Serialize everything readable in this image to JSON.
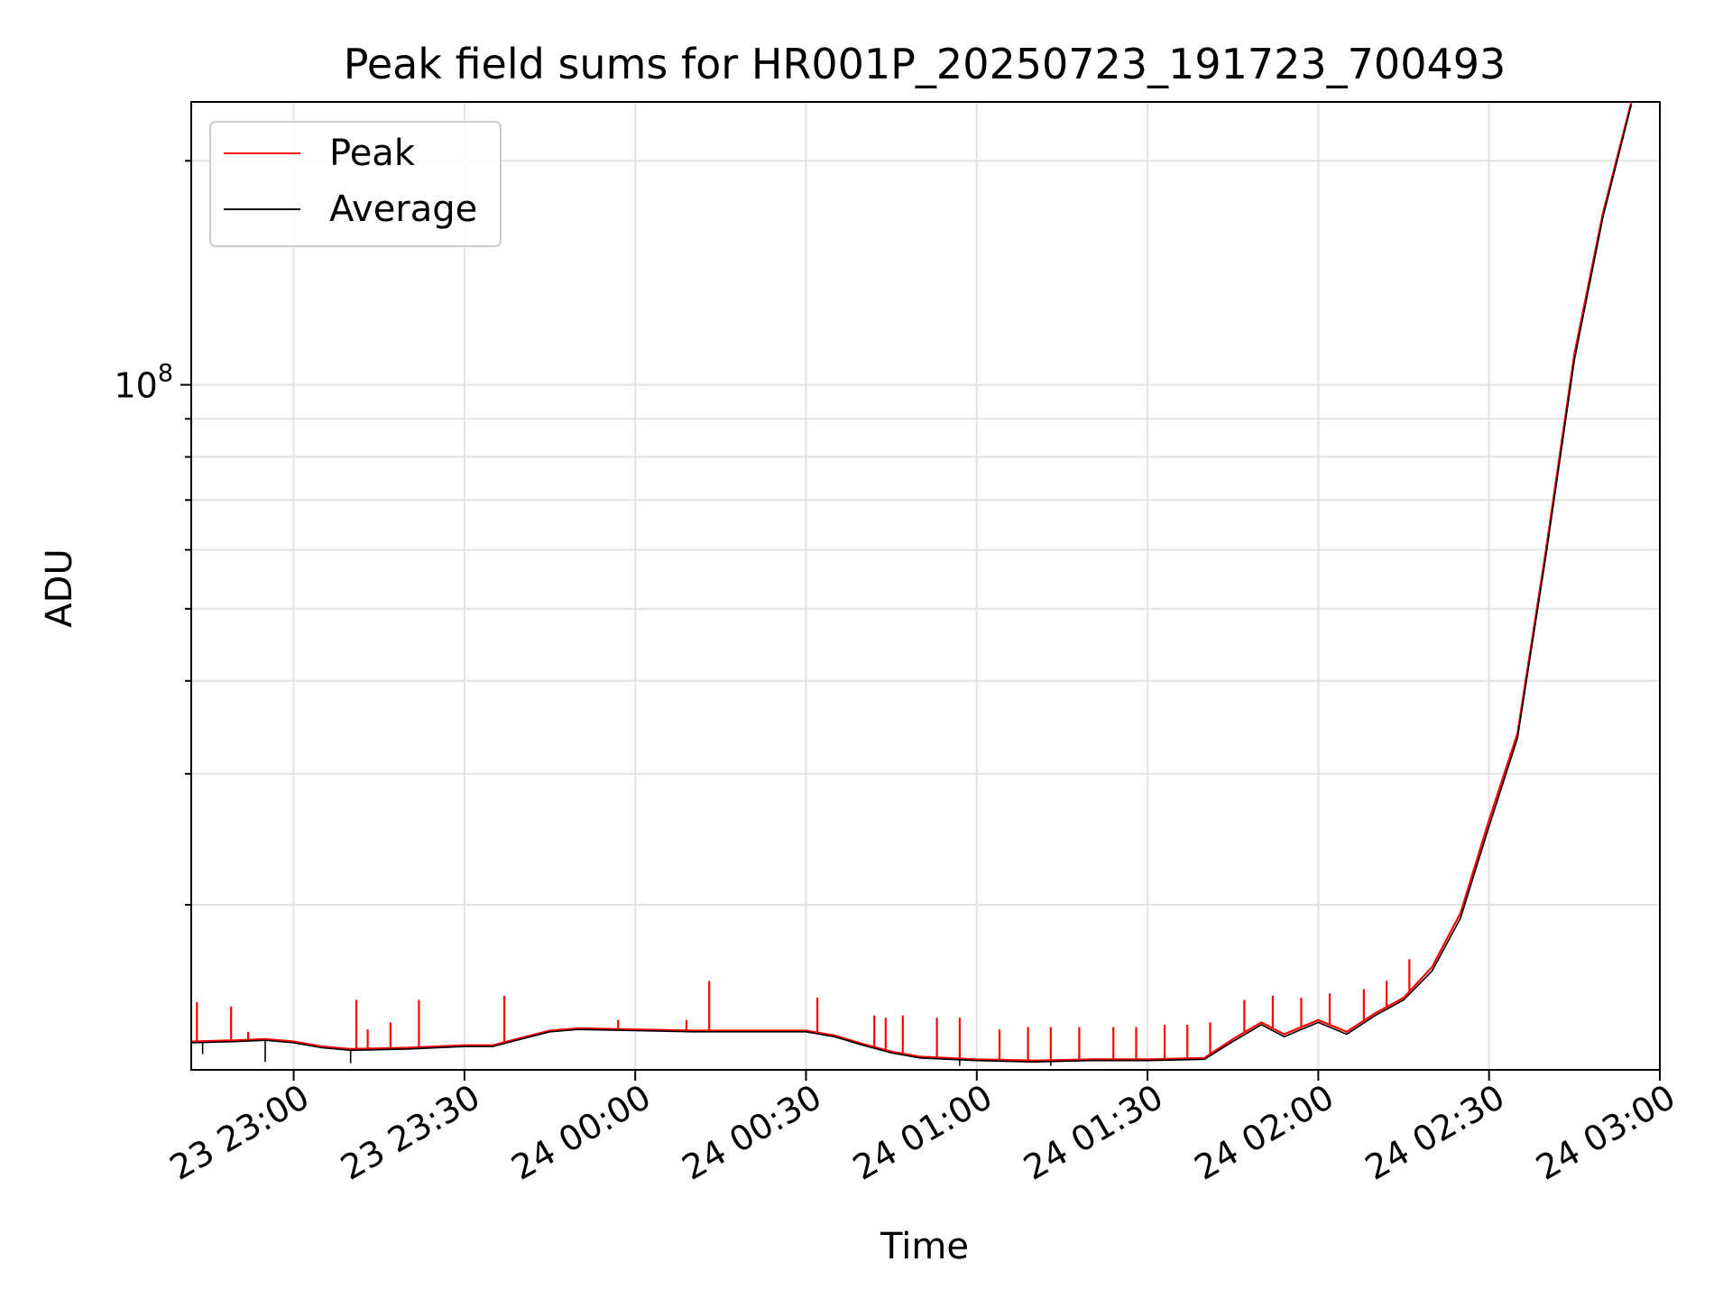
{
  "chart_data": {
    "type": "line",
    "title": "Peak field sums for HR001P_20250723_191723_700493",
    "xlabel": "Time",
    "ylabel": "ADU",
    "y_scale": "log",
    "x_range": [
      "2025-07-23 22:42",
      "2025-07-24 03:00"
    ],
    "ylim": [
      12000000,
      240000000
    ],
    "x_ticks": [
      {
        "label": "23 23:00",
        "t": "2025-07-23 23:00"
      },
      {
        "label": "23 23:30",
        "t": "2025-07-23 23:30"
      },
      {
        "label": "24 00:00",
        "t": "2025-07-24 00:00"
      },
      {
        "label": "24 00:30",
        "t": "2025-07-24 00:30"
      },
      {
        "label": "24 01:00",
        "t": "2025-07-24 01:00"
      },
      {
        "label": "24 01:30",
        "t": "2025-07-24 01:30"
      },
      {
        "label": "24 02:00",
        "t": "2025-07-24 02:00"
      },
      {
        "label": "24 02:30",
        "t": "2025-07-24 02:30"
      },
      {
        "label": "24 03:00",
        "t": "2025-07-24 03:00"
      }
    ],
    "y_ticks": [
      {
        "base": "10",
        "exp": "8",
        "value": 100000000
      }
    ],
    "grid": true,
    "legend_position": "top-left",
    "series": [
      {
        "name": "Peak",
        "color": "#ff0000",
        "points": [
          [
            "2025-07-23 22:42",
            13100000
          ],
          [
            "2025-07-23 22:50",
            13150000
          ],
          [
            "2025-07-23 22:55",
            13200000
          ],
          [
            "2025-07-23 23:00",
            13100000
          ],
          [
            "2025-07-23 23:05",
            12900000
          ],
          [
            "2025-07-23 23:10",
            12800000
          ],
          [
            "2025-07-23 23:20",
            12850000
          ],
          [
            "2025-07-23 23:30",
            12950000
          ],
          [
            "2025-07-23 23:35",
            12950000
          ],
          [
            "2025-07-23 23:40",
            13250000
          ],
          [
            "2025-07-23 23:45",
            13550000
          ],
          [
            "2025-07-23 23:50",
            13650000
          ],
          [
            "2025-07-24 00:00",
            13600000
          ],
          [
            "2025-07-24 00:10",
            13550000
          ],
          [
            "2025-07-24 00:20",
            13550000
          ],
          [
            "2025-07-24 00:30",
            13550000
          ],
          [
            "2025-07-24 00:35",
            13350000
          ],
          [
            "2025-07-24 00:40",
            13000000
          ],
          [
            "2025-07-24 00:45",
            12700000
          ],
          [
            "2025-07-24 00:50",
            12500000
          ],
          [
            "2025-07-24 01:00",
            12400000
          ],
          [
            "2025-07-24 01:10",
            12350000
          ],
          [
            "2025-07-24 01:20",
            12400000
          ],
          [
            "2025-07-24 01:30",
            12400000
          ],
          [
            "2025-07-24 01:40",
            12450000
          ],
          [
            "2025-07-24 01:45",
            13200000
          ],
          [
            "2025-07-24 01:50",
            13900000
          ],
          [
            "2025-07-24 01:54",
            13400000
          ],
          [
            "2025-07-24 02:00",
            14000000
          ],
          [
            "2025-07-24 02:05",
            13500000
          ],
          [
            "2025-07-24 02:10",
            14300000
          ],
          [
            "2025-07-24 02:15",
            15000000
          ],
          [
            "2025-07-24 02:20",
            16500000
          ],
          [
            "2025-07-24 02:25",
            19500000
          ],
          [
            "2025-07-24 02:30",
            26000000
          ],
          [
            "2025-07-24 02:35",
            34000000
          ],
          [
            "2025-07-24 02:40",
            60000000
          ],
          [
            "2025-07-24 02:45",
            110000000
          ],
          [
            "2025-07-24 02:50",
            170000000
          ],
          [
            "2025-07-24 02:55",
            240000000
          ]
        ],
        "spikes": [
          [
            "2025-07-23 22:43",
            14800000
          ],
          [
            "2025-07-23 22:49",
            14600000
          ],
          [
            "2025-07-23 22:52",
            13500000
          ],
          [
            "2025-07-23 23:11",
            14900000
          ],
          [
            "2025-07-23 23:13",
            13600000
          ],
          [
            "2025-07-23 23:17",
            13900000
          ],
          [
            "2025-07-23 23:22",
            14900000
          ],
          [
            "2025-07-23 23:37",
            15100000
          ],
          [
            "2025-07-23 23:57",
            14000000
          ],
          [
            "2025-07-24 00:09",
            14000000
          ],
          [
            "2025-07-24 00:13",
            15800000
          ],
          [
            "2025-07-24 00:32",
            15000000
          ],
          [
            "2025-07-24 00:42",
            14200000
          ],
          [
            "2025-07-24 00:44",
            14100000
          ],
          [
            "2025-07-24 00:47",
            14200000
          ],
          [
            "2025-07-24 00:53",
            14100000
          ],
          [
            "2025-07-24 00:57",
            14100000
          ],
          [
            "2025-07-24 01:04",
            13600000
          ],
          [
            "2025-07-24 01:09",
            13700000
          ],
          [
            "2025-07-24 01:13",
            13700000
          ],
          [
            "2025-07-24 01:18",
            13700000
          ],
          [
            "2025-07-24 01:24",
            13700000
          ],
          [
            "2025-07-24 01:28",
            13700000
          ],
          [
            "2025-07-24 01:33",
            13800000
          ],
          [
            "2025-07-24 01:37",
            13800000
          ],
          [
            "2025-07-24 01:41",
            13900000
          ],
          [
            "2025-07-24 01:47",
            14900000
          ],
          [
            "2025-07-24 01:52",
            15100000
          ],
          [
            "2025-07-24 01:57",
            15000000
          ],
          [
            "2025-07-24 02:02",
            15200000
          ],
          [
            "2025-07-24 02:08",
            15400000
          ],
          [
            "2025-07-24 02:12",
            15800000
          ],
          [
            "2025-07-24 02:16",
            16900000
          ]
        ]
      },
      {
        "name": "Average",
        "color": "#000000",
        "points": [
          [
            "2025-07-23 22:42",
            13050000
          ],
          [
            "2025-07-23 22:50",
            13100000
          ],
          [
            "2025-07-23 22:55",
            13150000
          ],
          [
            "2025-07-23 23:00",
            13050000
          ],
          [
            "2025-07-23 23:05",
            12850000
          ],
          [
            "2025-07-23 23:10",
            12750000
          ],
          [
            "2025-07-23 23:20",
            12800000
          ],
          [
            "2025-07-23 23:30",
            12900000
          ],
          [
            "2025-07-23 23:35",
            12900000
          ],
          [
            "2025-07-23 23:40",
            13200000
          ],
          [
            "2025-07-23 23:45",
            13500000
          ],
          [
            "2025-07-23 23:50",
            13600000
          ],
          [
            "2025-07-24 00:00",
            13550000
          ],
          [
            "2025-07-24 00:10",
            13500000
          ],
          [
            "2025-07-24 00:20",
            13500000
          ],
          [
            "2025-07-24 00:30",
            13500000
          ],
          [
            "2025-07-24 00:35",
            13300000
          ],
          [
            "2025-07-24 00:40",
            12950000
          ],
          [
            "2025-07-24 00:45",
            12650000
          ],
          [
            "2025-07-24 00:50",
            12450000
          ],
          [
            "2025-07-24 01:00",
            12350000
          ],
          [
            "2025-07-24 01:10",
            12300000
          ],
          [
            "2025-07-24 01:20",
            12350000
          ],
          [
            "2025-07-24 01:30",
            12350000
          ],
          [
            "2025-07-24 01:40",
            12400000
          ],
          [
            "2025-07-24 01:45",
            13100000
          ],
          [
            "2025-07-24 01:50",
            13800000
          ],
          [
            "2025-07-24 01:54",
            13300000
          ],
          [
            "2025-07-24 02:00",
            13900000
          ],
          [
            "2025-07-24 02:05",
            13400000
          ],
          [
            "2025-07-24 02:10",
            14200000
          ],
          [
            "2025-07-24 02:15",
            14900000
          ],
          [
            "2025-07-24 02:20",
            16300000
          ],
          [
            "2025-07-24 02:25",
            19200000
          ],
          [
            "2025-07-24 02:30",
            25500000
          ],
          [
            "2025-07-24 02:35",
            33500000
          ],
          [
            "2025-07-24 02:40",
            59000000
          ],
          [
            "2025-07-24 02:45",
            108000000
          ],
          [
            "2025-07-24 02:50",
            168000000
          ],
          [
            "2025-07-24 02:55",
            238000000
          ]
        ],
        "dips": [
          [
            "2025-07-23 22:44",
            12600000
          ],
          [
            "2025-07-23 22:55",
            12300000
          ],
          [
            "2025-07-23 23:10",
            12250000
          ],
          [
            "2025-07-24 00:57",
            12150000
          ],
          [
            "2025-07-24 01:13",
            12150000
          ]
        ]
      }
    ]
  }
}
